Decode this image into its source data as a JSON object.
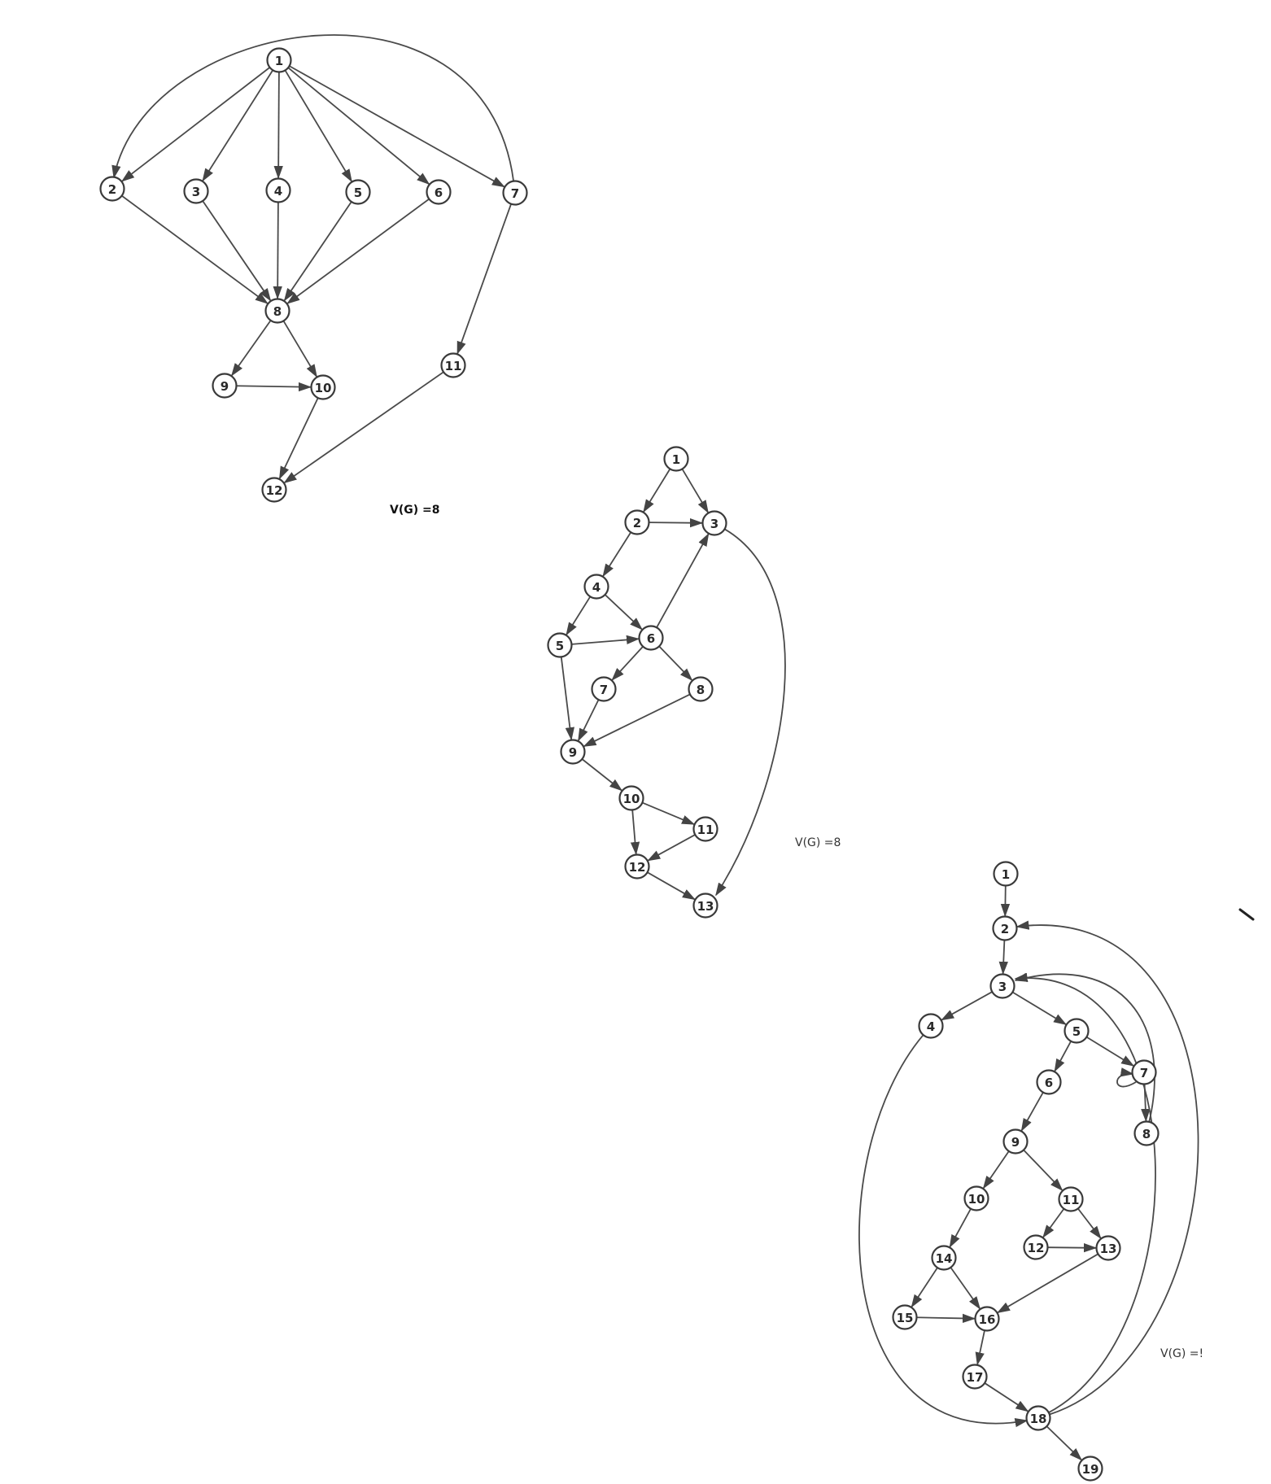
{
  "colors": {
    "stroke": "#3a3a3a",
    "edge": "#4a4a4a",
    "background": "#ffffff"
  },
  "graphs": [
    {
      "id": "graph-1",
      "complexity_label": "V(G) =8",
      "nodes": [
        "1",
        "2",
        "3",
        "4",
        "5",
        "6",
        "7",
        "8",
        "9",
        "10",
        "11",
        "12"
      ],
      "edges": [
        [
          "1",
          "2"
        ],
        [
          "1",
          "3"
        ],
        [
          "1",
          "4"
        ],
        [
          "1",
          "5"
        ],
        [
          "1",
          "6"
        ],
        [
          "1",
          "7"
        ],
        [
          "7",
          "2"
        ],
        [
          "2",
          "8"
        ],
        [
          "3",
          "8"
        ],
        [
          "4",
          "8"
        ],
        [
          "5",
          "8"
        ],
        [
          "6",
          "8"
        ],
        [
          "8",
          "9"
        ],
        [
          "8",
          "10"
        ],
        [
          "9",
          "10"
        ],
        [
          "10",
          "12"
        ],
        [
          "7",
          "11"
        ],
        [
          "11",
          "12"
        ]
      ]
    },
    {
      "id": "graph-2",
      "complexity_label": "V(G) =8",
      "nodes": [
        "1",
        "2",
        "3",
        "4",
        "5",
        "6",
        "7",
        "8",
        "9",
        "10",
        "11",
        "12",
        "13"
      ],
      "edges": [
        [
          "1",
          "2"
        ],
        [
          "1",
          "3"
        ],
        [
          "2",
          "3"
        ],
        [
          "2",
          "4"
        ],
        [
          "4",
          "5"
        ],
        [
          "4",
          "6"
        ],
        [
          "5",
          "6"
        ],
        [
          "6",
          "3"
        ],
        [
          "6",
          "7"
        ],
        [
          "6",
          "8"
        ],
        [
          "5",
          "9"
        ],
        [
          "7",
          "9"
        ],
        [
          "8",
          "9"
        ],
        [
          "9",
          "10"
        ],
        [
          "10",
          "11"
        ],
        [
          "10",
          "12"
        ],
        [
          "11",
          "12"
        ],
        [
          "12",
          "13"
        ],
        [
          "3",
          "13"
        ]
      ]
    },
    {
      "id": "graph-3",
      "complexity_label": "V(G) =\t",
      "nodes": [
        "1",
        "2",
        "3",
        "4",
        "5",
        "6",
        "7",
        "8",
        "9",
        "10",
        "11",
        "12",
        "13",
        "14",
        "15",
        "16",
        "17",
        "18",
        "19"
      ],
      "edges": [
        [
          "1",
          "2"
        ],
        [
          "2",
          "3"
        ],
        [
          "3",
          "4"
        ],
        [
          "3",
          "5"
        ],
        [
          "5",
          "6"
        ],
        [
          "5",
          "7"
        ],
        [
          "7",
          "7"
        ],
        [
          "7",
          "8"
        ],
        [
          "8",
          "3"
        ],
        [
          "6",
          "9"
        ],
        [
          "9",
          "10"
        ],
        [
          "9",
          "11"
        ],
        [
          "11",
          "12"
        ],
        [
          "11",
          "13"
        ],
        [
          "12",
          "13"
        ],
        [
          "10",
          "14"
        ],
        [
          "14",
          "15"
        ],
        [
          "14",
          "16"
        ],
        [
          "15",
          "16"
        ],
        [
          "13",
          "16"
        ],
        [
          "16",
          "17"
        ],
        [
          "17",
          "18"
        ],
        [
          "4",
          "18"
        ],
        [
          "18",
          "3"
        ],
        [
          "18",
          "2"
        ],
        [
          "18",
          "19"
        ]
      ]
    }
  ]
}
